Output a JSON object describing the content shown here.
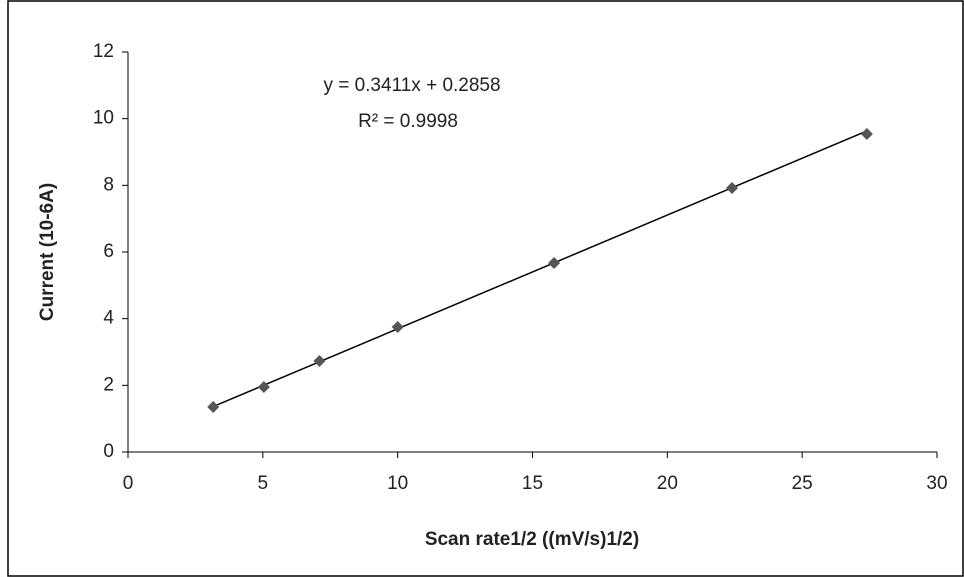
{
  "chart_data": {
    "type": "scatter",
    "x_label": "Scan rate1/2 ((mV/s)1/2)",
    "y_label": "Current (10-6A)",
    "annotations": [
      "y = 0.3411x + 0.2858",
      "R² = 0.9998"
    ],
    "x": [
      3.16,
      5.04,
      7.1,
      10.0,
      15.8,
      22.4,
      27.4
    ],
    "series": [
      {
        "color": "#555555",
        "values": [
          1.35,
          1.95,
          2.73,
          3.75,
          5.67,
          7.92,
          9.54
        ]
      }
    ],
    "xlim": [
      0,
      30
    ],
    "xticks": [
      0,
      5,
      10,
      15,
      20,
      25,
      30
    ],
    "ylim": [
      0,
      12
    ],
    "yticks": [
      0,
      2,
      4,
      6,
      8,
      10,
      12
    ],
    "trendline": true
  }
}
